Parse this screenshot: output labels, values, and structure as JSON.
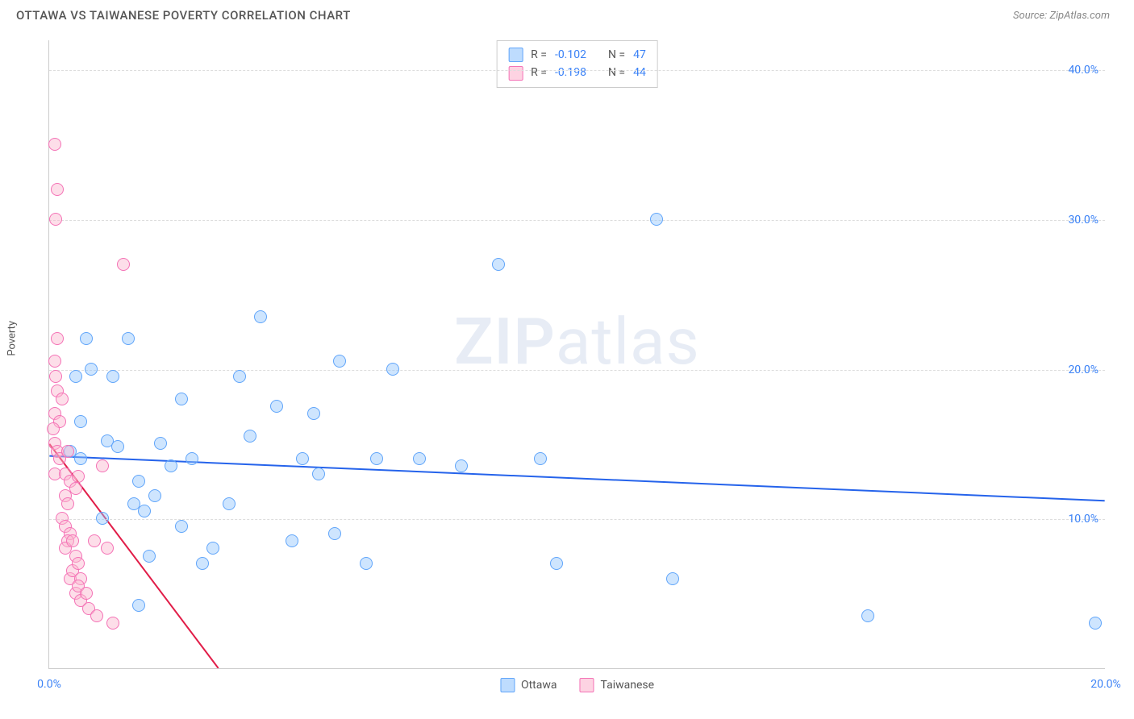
{
  "header": {
    "title": "OTTAWA VS TAIWANESE POVERTY CORRELATION CHART",
    "source_prefix": "Source: ",
    "source_name": "ZipAtlas.com"
  },
  "watermark": {
    "zip": "ZIP",
    "atlas": "atlas"
  },
  "chart": {
    "type": "scatter",
    "ylabel": "Poverty",
    "background_color": "#ffffff",
    "grid_color": "#dddddd",
    "axis_color": "#cccccc",
    "tick_color": "#3b82f6",
    "tick_fontsize": 14,
    "label_fontsize": 13,
    "title_fontsize": 15,
    "marker_radius": 8,
    "xlim": [
      0,
      20
    ],
    "ylim": [
      0,
      42
    ],
    "y_ticks": [
      {
        "v": 40,
        "label": "40.0%"
      },
      {
        "v": 30,
        "label": "30.0%"
      },
      {
        "v": 20,
        "label": "20.0%"
      },
      {
        "v": 10,
        "label": "10.0%"
      }
    ],
    "x_ticks": [
      {
        "v": 0,
        "label": "0.0%"
      },
      {
        "v": 20,
        "label": "20.0%"
      }
    ],
    "series": [
      {
        "name": "Ottawa",
        "color_fill": "rgba(147,197,253,0.45)",
        "color_stroke": "#60a5fa",
        "trend_color": "#2563eb",
        "trend_width": 2,
        "trend": {
          "x1": 0,
          "y1": 14.2,
          "x2": 20,
          "y2": 11.2
        },
        "points": [
          [
            0.4,
            14.5
          ],
          [
            0.5,
            19.5
          ],
          [
            0.6,
            16.5
          ],
          [
            0.6,
            14.0
          ],
          [
            0.7,
            22.0
          ],
          [
            0.8,
            20.0
          ],
          [
            1.0,
            10.0
          ],
          [
            1.1,
            15.2
          ],
          [
            1.2,
            19.5
          ],
          [
            1.3,
            14.8
          ],
          [
            1.5,
            22.0
          ],
          [
            1.6,
            11.0
          ],
          [
            1.7,
            12.5
          ],
          [
            1.7,
            4.2
          ],
          [
            1.8,
            10.5
          ],
          [
            1.9,
            7.5
          ],
          [
            2.0,
            11.5
          ],
          [
            2.1,
            15.0
          ],
          [
            2.3,
            13.5
          ],
          [
            2.5,
            9.5
          ],
          [
            2.5,
            18.0
          ],
          [
            2.7,
            14.0
          ],
          [
            2.9,
            7.0
          ],
          [
            3.1,
            8.0
          ],
          [
            3.4,
            11.0
          ],
          [
            3.6,
            19.5
          ],
          [
            3.8,
            15.5
          ],
          [
            4.0,
            23.5
          ],
          [
            4.3,
            17.5
          ],
          [
            4.6,
            8.5
          ],
          [
            4.8,
            14.0
          ],
          [
            5.0,
            17.0
          ],
          [
            5.1,
            13.0
          ],
          [
            5.4,
            9.0
          ],
          [
            5.5,
            20.5
          ],
          [
            6.0,
            7.0
          ],
          [
            6.2,
            14.0
          ],
          [
            6.5,
            20.0
          ],
          [
            7.0,
            14.0
          ],
          [
            7.8,
            13.5
          ],
          [
            8.5,
            27.0
          ],
          [
            9.3,
            14.0
          ],
          [
            9.6,
            7.0
          ],
          [
            11.5,
            30.0
          ],
          [
            11.8,
            6.0
          ],
          [
            15.5,
            3.5
          ],
          [
            19.8,
            3.0
          ]
        ]
      },
      {
        "name": "Taiwanese",
        "color_fill": "rgba(251,182,206,0.45)",
        "color_stroke": "#f472b6",
        "trend_color": "#e11d48",
        "trend_width": 2,
        "trend": {
          "x1": 0,
          "y1": 15.0,
          "x2": 3.2,
          "y2": 0
        },
        "trend_dashed_ext": {
          "x1": 3.2,
          "y1": 0,
          "x2": 3.5,
          "y2": -1.5
        },
        "points": [
          [
            0.1,
            35.0
          ],
          [
            0.15,
            32.0
          ],
          [
            0.12,
            30.0
          ],
          [
            0.15,
            22.0
          ],
          [
            0.1,
            20.5
          ],
          [
            0.12,
            19.5
          ],
          [
            0.15,
            18.5
          ],
          [
            0.1,
            17.0
          ],
          [
            0.2,
            16.5
          ],
          [
            0.08,
            16.0
          ],
          [
            0.1,
            15.0
          ],
          [
            0.15,
            14.5
          ],
          [
            0.2,
            14.0
          ],
          [
            0.1,
            13.0
          ],
          [
            0.25,
            18.0
          ],
          [
            0.3,
            13.0
          ],
          [
            0.35,
            14.5
          ],
          [
            0.4,
            12.5
          ],
          [
            0.3,
            11.5
          ],
          [
            0.35,
            11.0
          ],
          [
            0.25,
            10.0
          ],
          [
            0.3,
            9.5
          ],
          [
            0.4,
            9.0
          ],
          [
            0.35,
            8.5
          ],
          [
            0.3,
            8.0
          ],
          [
            0.45,
            8.5
          ],
          [
            0.5,
            12.0
          ],
          [
            0.55,
            12.8
          ],
          [
            0.5,
            7.5
          ],
          [
            0.4,
            6.0
          ],
          [
            0.45,
            6.5
          ],
          [
            0.55,
            7.0
          ],
          [
            0.6,
            6.0
          ],
          [
            0.5,
            5.0
          ],
          [
            0.55,
            5.5
          ],
          [
            0.6,
            4.5
          ],
          [
            0.7,
            5.0
          ],
          [
            0.75,
            4.0
          ],
          [
            0.85,
            8.5
          ],
          [
            0.9,
            3.5
          ],
          [
            1.0,
            13.5
          ],
          [
            1.1,
            8.0
          ],
          [
            1.2,
            3.0
          ],
          [
            1.4,
            27.0
          ]
        ]
      }
    ],
    "stats": [
      {
        "swatch": "blue",
        "r_label": "R =",
        "r": "-0.102",
        "n_label": "N =",
        "n": "47"
      },
      {
        "swatch": "pink",
        "r_label": "R =",
        "r": "-0.198",
        "n_label": "N =",
        "n": "44"
      }
    ],
    "legend_bottom": [
      {
        "swatch": "blue",
        "label": "Ottawa"
      },
      {
        "swatch": "pink",
        "label": "Taiwanese"
      }
    ]
  }
}
